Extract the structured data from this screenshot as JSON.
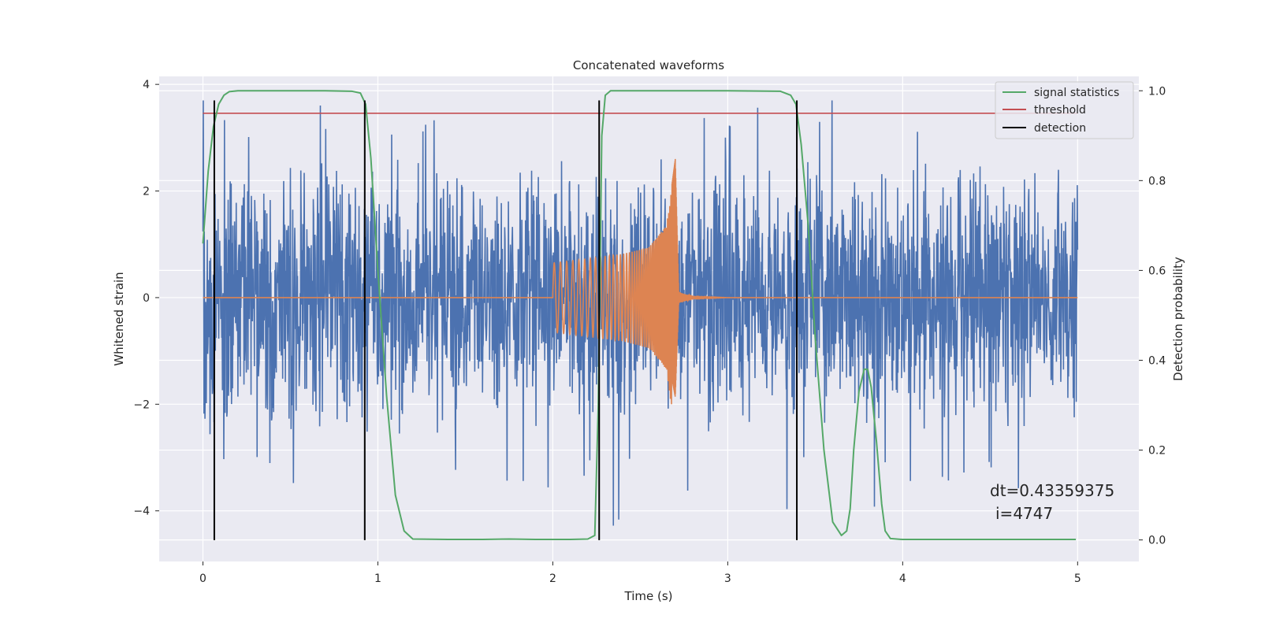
{
  "chart_data": {
    "type": "line",
    "title": "Concatenated waveforms",
    "xlabel": "Time (s)",
    "ylabel": "Whitened strain",
    "ylabel_right": "Detection probability",
    "xlim": [
      -0.25,
      5.35
    ],
    "ylim": [
      -4.95,
      4.15
    ],
    "ylim_right": [
      -0.048,
      1.032
    ],
    "x_ticks": [
      0,
      1,
      2,
      3,
      4,
      5
    ],
    "y_ticks": [
      -4,
      -2,
      0,
      2,
      4
    ],
    "y_ticks_right": [
      0.0,
      0.2,
      0.4,
      0.6,
      0.8,
      1.0
    ],
    "x_tick_labels": [
      "0",
      "1",
      "2",
      "3",
      "4",
      "5"
    ],
    "y_tick_labels": [
      "−4",
      "−2",
      "0",
      "2",
      "4"
    ],
    "y_tick_labels_right": [
      "0.0",
      "0.2",
      "0.4",
      "0.6",
      "0.8",
      "1.0"
    ],
    "grid": true,
    "legend_position": "top-right",
    "colors": {
      "background": "#eaeaf2",
      "grid": "#ffffff",
      "strain": "#4c72b0",
      "template": "#dd8452",
      "signal_statistics": "#55a868",
      "threshold": "#c44e52",
      "detection": "#000000"
    },
    "series": [
      {
        "name": "signal statistics",
        "axis": "right",
        "x": [
          0,
          0.03,
          0.06,
          0.09,
          0.12,
          0.15,
          0.2,
          0.3,
          0.5,
          0.7,
          0.85,
          0.9,
          0.93,
          0.96,
          1.0,
          1.05,
          1.1,
          1.15,
          1.2,
          1.4,
          1.6,
          1.75,
          1.9,
          2.1,
          2.2,
          2.24,
          2.26,
          2.28,
          2.3,
          2.33,
          2.4,
          2.6,
          3.0,
          3.3,
          3.36,
          3.39,
          3.42,
          3.46,
          3.5,
          3.55,
          3.6,
          3.65,
          3.68,
          3.7,
          3.72,
          3.75,
          3.78,
          3.8,
          3.82,
          3.85,
          3.88,
          3.9,
          3.93,
          4.0,
          4.5,
          4.99
        ],
        "y": [
          0.66,
          0.82,
          0.92,
          0.97,
          0.99,
          0.998,
          1.0,
          1.0,
          1.0,
          1.0,
          0.999,
          0.995,
          0.97,
          0.85,
          0.6,
          0.32,
          0.1,
          0.02,
          0.002,
          0.001,
          0.001,
          0.002,
          0.001,
          0.001,
          0.002,
          0.01,
          0.3,
          0.9,
          0.99,
          1.0,
          1.0,
          1.0,
          1.0,
          0.999,
          0.99,
          0.97,
          0.88,
          0.7,
          0.45,
          0.2,
          0.04,
          0.01,
          0.02,
          0.07,
          0.2,
          0.33,
          0.38,
          0.38,
          0.34,
          0.22,
          0.08,
          0.02,
          0.003,
          0.001,
          0.001,
          0.001
        ]
      },
      {
        "name": "threshold",
        "axis": "right",
        "x": [
          0,
          5
        ],
        "y": [
          0.95,
          0.95
        ]
      },
      {
        "name": "detection",
        "axis": "left",
        "x": [
          0.065,
          0.925,
          2.265,
          3.395
        ],
        "y_range": [
          -4.55,
          3.7
        ]
      }
    ],
    "strain_noise": {
      "x_range": [
        0,
        5
      ],
      "typical_amplitude": 1.1,
      "peak_max": 3.7,
      "peak_min": -4.55
    },
    "template_chirp": {
      "x": [
        2.0,
        2.2,
        2.4,
        2.55,
        2.65,
        2.7,
        2.72,
        2.8,
        3.0,
        5.0
      ],
      "envelope": [
        0.65,
        0.73,
        0.82,
        0.95,
        1.35,
        2.6,
        0.1,
        0.02,
        0.0,
        0.0
      ]
    },
    "legend": [
      "signal statistics",
      "threshold",
      "detection"
    ],
    "annotations": [
      "dt=0.43359375",
      "i=4747"
    ]
  }
}
